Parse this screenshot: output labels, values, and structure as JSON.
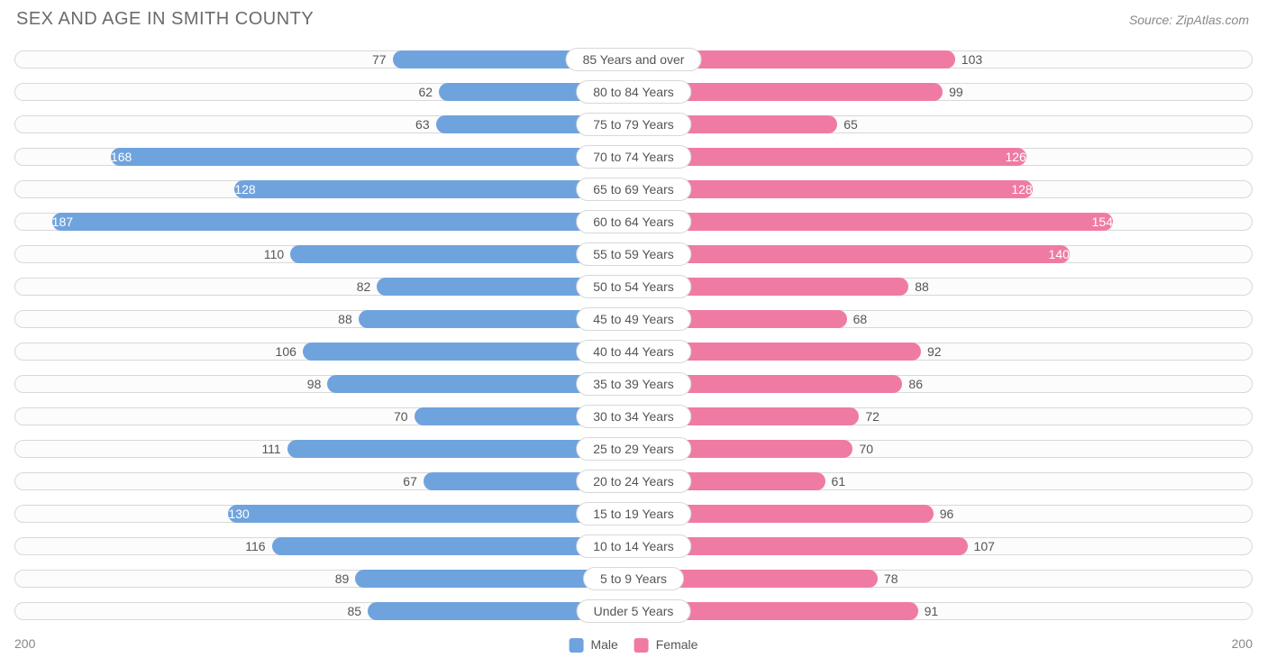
{
  "title": "SEX AND AGE IN SMITH COUNTY",
  "source": "Source: ZipAtlas.com",
  "chart": {
    "type": "population-pyramid",
    "axis_max": 200,
    "axis_tick_left": "200",
    "axis_tick_right": "200",
    "male_color": "#6fa3dd",
    "female_color": "#ef7ba4",
    "track_border": "#d8d8d8",
    "track_bg": "#fcfcfc",
    "value_font_size": 14,
    "value_color_outside": "#555555",
    "value_color_inside": "#ffffff",
    "category_font_size": 14,
    "rows": [
      {
        "label": "85 Years and over",
        "male": 77,
        "female": 103
      },
      {
        "label": "80 to 84 Years",
        "male": 62,
        "female": 99
      },
      {
        "label": "75 to 79 Years",
        "male": 63,
        "female": 65
      },
      {
        "label": "70 to 74 Years",
        "male": 168,
        "female": 126
      },
      {
        "label": "65 to 69 Years",
        "male": 128,
        "female": 128
      },
      {
        "label": "60 to 64 Years",
        "male": 187,
        "female": 154
      },
      {
        "label": "55 to 59 Years",
        "male": 110,
        "female": 140
      },
      {
        "label": "50 to 54 Years",
        "male": 82,
        "female": 88
      },
      {
        "label": "45 to 49 Years",
        "male": 88,
        "female": 68
      },
      {
        "label": "40 to 44 Years",
        "male": 106,
        "female": 92
      },
      {
        "label": "35 to 39 Years",
        "male": 98,
        "female": 86
      },
      {
        "label": "30 to 34 Years",
        "male": 70,
        "female": 72
      },
      {
        "label": "25 to 29 Years",
        "male": 111,
        "female": 70
      },
      {
        "label": "20 to 24 Years",
        "male": 67,
        "female": 61
      },
      {
        "label": "15 to 19 Years",
        "male": 130,
        "female": 96
      },
      {
        "label": "10 to 14 Years",
        "male": 116,
        "female": 107
      },
      {
        "label": "5 to 9 Years",
        "male": 89,
        "female": 78
      },
      {
        "label": "Under 5 Years",
        "male": 85,
        "female": 91
      }
    ],
    "legend": {
      "male_label": "Male",
      "female_label": "Female"
    }
  }
}
